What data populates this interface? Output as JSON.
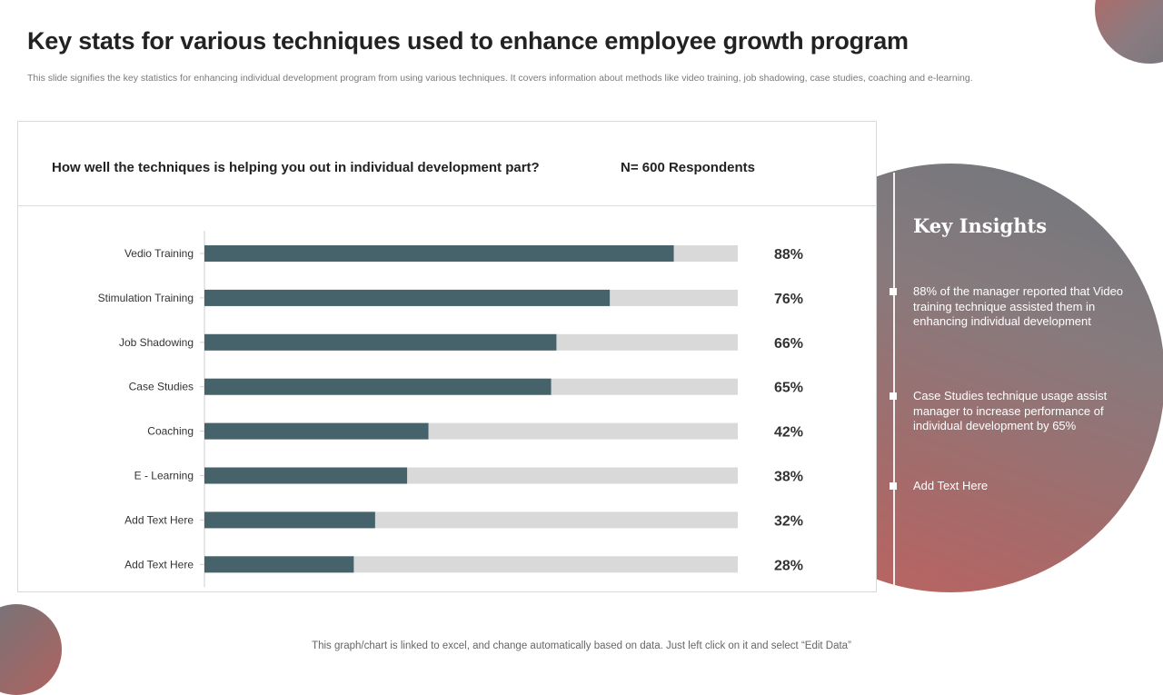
{
  "header": {
    "title": "Key stats for various techniques used to enhance employee growth program",
    "subtitle": "This slide signifies the key statistics for enhancing individual development program from using various techniques. It covers information about methods like video training, job shadowing, case studies, coaching and e-learning."
  },
  "card": {
    "question": "How well the techniques is helping you out in individual development part?",
    "respondents": "N= 600 Respondents"
  },
  "insights": {
    "title": "Key Insights",
    "items": [
      "88% of the manager reported that Video training technique assisted them in enhancing individual development",
      "Case Studies technique usage assist manager to increase performance of individual development by 65%",
      "Add Text Here"
    ]
  },
  "footer": {
    "note": "This graph/chart is linked to excel, and change automatically based on data. Just left click on it and select “Edit Data”"
  },
  "colors": {
    "bar": "#46636b",
    "track": "#d9d9d9",
    "axis": "#cfcfcf"
  },
  "chart_data": {
    "type": "bar",
    "orientation": "horizontal",
    "title": "How well the techniques is helping you out in individual development part?",
    "categories": [
      "Vedio Training",
      "Stimulation Training",
      "Job Shadowing",
      "Case Studies",
      "Coaching",
      "E - Learning",
      "Add Text Here",
      "Add Text Here"
    ],
    "values": [
      88,
      76,
      66,
      65,
      42,
      38,
      32,
      28
    ],
    "value_labels": [
      "88%",
      "76%",
      "66%",
      "65%",
      "42%",
      "38%",
      "32%",
      "28%"
    ],
    "xlim": [
      0,
      100
    ],
    "unit": "%",
    "grid": false,
    "legend": "none"
  }
}
